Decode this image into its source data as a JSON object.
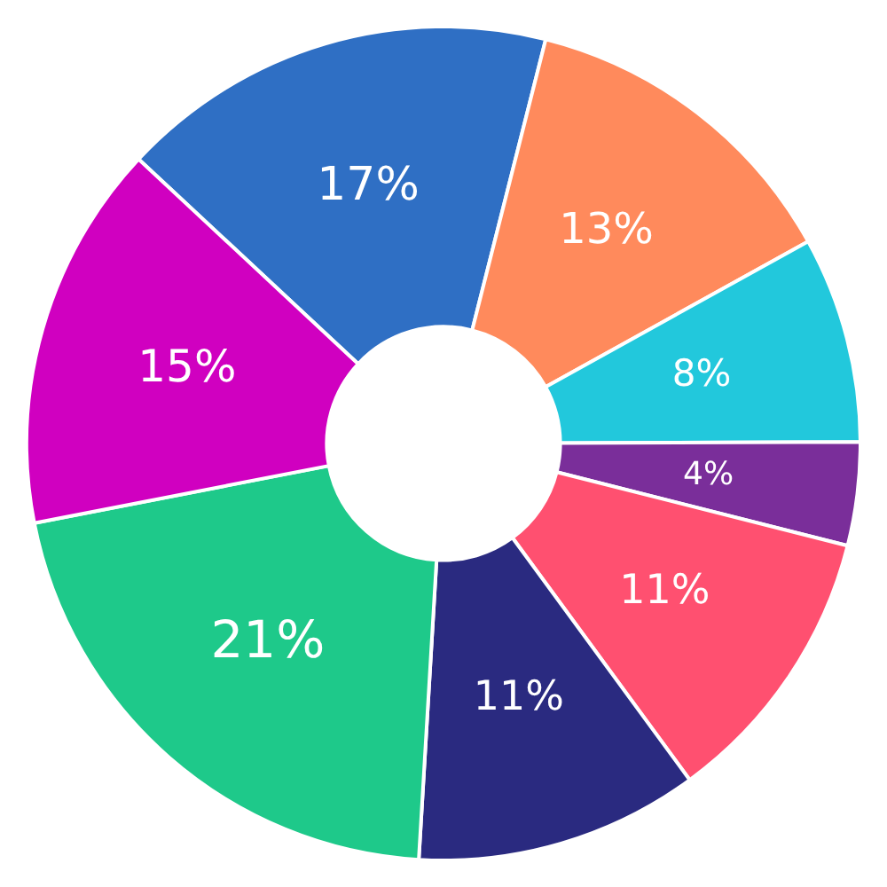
{
  "chart_data": {
    "type": "donut",
    "categories": [
      null,
      null,
      null,
      null,
      null,
      null,
      null,
      null
    ],
    "values": [
      17,
      13,
      8,
      4,
      11,
      11,
      21,
      15
    ],
    "colors": [
      "#2f6fc4",
      "#ff8a5c",
      "#22c8dc",
      "#7a2e9a",
      "#ff5070",
      "#2a2a80",
      "#1ec98a",
      "#d000c0"
    ],
    "value_labels": [
      "17%",
      "13%",
      "8%",
      "4%",
      "11%",
      "11%",
      "21%",
      "15%"
    ]
  }
}
